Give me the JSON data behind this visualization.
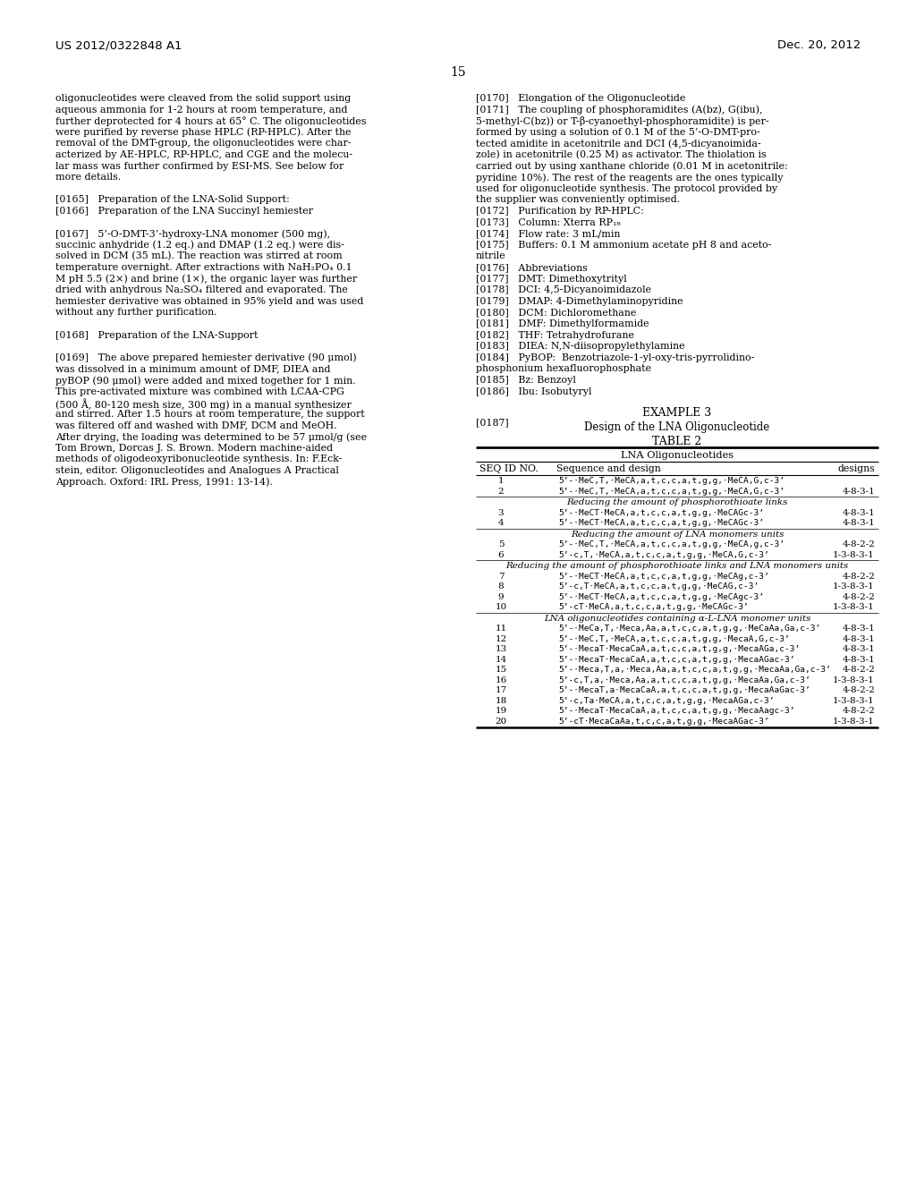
{
  "bg_color": "#ffffff",
  "header_left": "US 2012/0322848 A1",
  "header_right": "Dec. 20, 2012",
  "page_number": "15",
  "left_column": [
    "oligonucleotides were cleaved from the solid support using",
    "aqueous ammonia for 1-2 hours at room temperature, and",
    "further deprotected for 4 hours at 65° C. The oligonucleotides",
    "were purified by reverse phase HPLC (RP-HPLC). After the",
    "removal of the DMT-group, the oligonucleotides were char-",
    "acterized by AE-HPLC, RP-HPLC, and CGE and the molecu-",
    "lar mass was further confirmed by ESI-MS. See below for",
    "more details.",
    "",
    "[0165]   Preparation of the LNA-Solid Support:",
    "[0166]   Preparation of the LNA Succinyl hemiester",
    "",
    "[0167]   5’-O-DMT-3’-hydroxy-LNA monomer (500 mg),",
    "succinic anhydride (1.2 eq.) and DMAP (1.2 eq.) were dis-",
    "solved in DCM (35 mL). The reaction was stirred at room",
    "temperature overnight. After extractions with NaH₂PO₄ 0.1",
    "M pH 5.5 (2×) and brine (1×), the organic layer was further",
    "dried with anhydrous Na₂SO₄ filtered and evaporated. The",
    "hemiester derivative was obtained in 95% yield and was used",
    "without any further purification.",
    "",
    "[0168]   Preparation of the LNA-Support",
    "",
    "[0169]   The above prepared hemiester derivative (90 μmol)",
    "was dissolved in a minimum amount of DMF, DIEA and",
    "pyBOP (90 μmol) were added and mixed together for 1 min.",
    "This pre-activated mixture was combined with LCAA-CPG",
    "(500 Å, 80-120 mesh size, 300 mg) in a manual synthesizer",
    "and stirred. After 1.5 hours at room temperature, the support",
    "was filtered off and washed with DMF, DCM and MeOH.",
    "After drying, the loading was determined to be 57 μmol/g (see",
    "Tom Brown, Dorcas J. S. Brown. Modern machine-aided",
    "methods of oligodeoxyribonucleotide synthesis. In: F.Eck-",
    "stein, editor. Oligonucleotides and Analogues A Practical",
    "Approach. Oxford: IRL Press, 1991: 13-14)."
  ],
  "right_column": [
    "[0170]   Elongation of the Oligonucleotide",
    "[0171]   The coupling of phosphoramidites (A(bz), G(ibu),",
    "5-methyl-C(bz)) or T-β-cyanoethyl-phosphoramidite) is per-",
    "formed by using a solution of 0.1 M of the 5’-O-DMT-pro-",
    "tected amidite in acetonitrile and DCI (4,5-dicyanoimida-",
    "zole) in acetonitrile (0.25 M) as activator. The thiolation is",
    "carried out by using xanthane chloride (0.01 M in acetonitrile:",
    "pyridine 10%). The rest of the reagents are the ones typically",
    "used for oligonucleotide synthesis. The protocol provided by",
    "the supplier was conveniently optimised.",
    "[0172]   Purification by RP-HPLC:",
    "[0173]   Column: Xterra RP₁₈",
    "[0174]   Flow rate: 3 mL/min",
    "[0175]   Buffers: 0.1 M ammonium acetate pH 8 and aceto-",
    "nitrile",
    "[0176]   Abbreviations",
    "[0177]   DMT: Dimethoxytrityl",
    "[0178]   DCI: 4,5-Dicyanoimidazole",
    "[0179]   DMAP: 4-Dimethylaminopyridine",
    "[0180]   DCM: Dichloromethane",
    "[0181]   DMF: Dimethylformamide",
    "[0182]   THF: Tetrahydrofurane",
    "[0183]   DIEA: N,N-diisopropylethylamine",
    "[0184]   PyBOP:  Benzotriazole-1-yl-oxy-tris-pyrrolidino-",
    "phosphonium hexafluorophosphate",
    "[0185]   Bz: Benzoyl",
    "[0186]   Ibu: Isobutyryl"
  ],
  "example3_title": "EXAMPLE 3",
  "example3_subtitle": "Design of the LNA Oligonucleotide",
  "para0187": "[0187]",
  "table_title": "TABLE 2",
  "table_subtitle": "LNA Oligonucleotides",
  "table_col1": "SEQ ID NO.",
  "table_col2": "Sequence and design",
  "table_col3": "designs",
  "table_rows": [
    {
      "seq": "1",
      "seq_design": "5’-·MeC,T,·MeCA,a,t,c,c,a,t,g,g,·MeCA,G,c-3’",
      "design": ""
    },
    {
      "seq": "2",
      "seq_design": "5’-·MeC,T,·MeCA,a,t,c,c,a,t,g,g,·MeCA,G,c-3’",
      "design": "4-8-3-1"
    },
    {
      "seq": "section1",
      "seq_design": "Reducing the amount of phosphorothioate links",
      "design": ""
    },
    {
      "seq": "3",
      "seq_design": "5’-·MeCT·MeCA,a,t,c,c,a,t,g,g,·MeCAGc-3’",
      "design": "4-8-3-1"
    },
    {
      "seq": "4",
      "seq_design": "5’-·MeCT·MeCA,a,t,c,c,a,t,g,g,·MeCAGc-3’",
      "design": "4-8-3-1"
    },
    {
      "seq": "section2",
      "seq_design": "Reducing the amount of LNA monomers units",
      "design": ""
    },
    {
      "seq": "5",
      "seq_design": "5’-·MeC,T,·MeCA,a,t,c,c,a,t,g,g,·MeCA,g,c-3’",
      "design": "4-8-2-2"
    },
    {
      "seq": "6",
      "seq_design": "5’-c,T,·MeCA,a,t,c,c,a,t,g,g,·MeCA,G,c-3’",
      "design": "1-3-8-3-1"
    },
    {
      "seq": "section3",
      "seq_design": "Reducing the amount of phosphorothioate links and LNA monomers units",
      "design": ""
    },
    {
      "seq": "7",
      "seq_design": "5’-·MeCT·MeCA,a,t,c,c,a,t,g,g,·MeCAg,c-3’",
      "design": "4-8-2-2"
    },
    {
      "seq": "8",
      "seq_design": "5’-c,T·MeCA,a,t,c,c,a,t,g,g,·MeCAG,c-3’",
      "design": "1-3-8-3-1"
    },
    {
      "seq": "9",
      "seq_design": "5’-·MeCT·MeCA,a,t,c,c,a,t,g,g,·MeCAgc-3’",
      "design": "4-8-2-2"
    },
    {
      "seq": "10",
      "seq_design": "5’-cT·MeCA,a,t,c,c,a,t,g,g,·MeCAGc-3’",
      "design": "1-3-8-3-1"
    },
    {
      "seq": "section4",
      "seq_design": "LNA oligonucleotides containing α-L-LNA monomer units",
      "design": ""
    },
    {
      "seq": "11",
      "seq_design": "5’-·MeCa,T,·Meca,Aa,a,t,c,c,a,t,g,g,·MeCaAa,Ga,c-3’",
      "design": "4-8-3-1"
    },
    {
      "seq": "12",
      "seq_design": "5’-·MeC,T,·MeCA,a,t,c,c,a,t,g,g,·MecaA,G,c-3’",
      "design": "4-8-3-1"
    },
    {
      "seq": "13",
      "seq_design": "5’-·MecaT·MecaCaA,a,t,c,c,a,t,g,g,·MecaAGa,c-3’",
      "design": "4-8-3-1"
    },
    {
      "seq": "14",
      "seq_design": "5’-·MecaT·MecaCaA,a,t,c,c,a,t,g,g,·MecaAGac-3’",
      "design": "4-8-3-1"
    },
    {
      "seq": "15",
      "seq_design": "5’-·Meca,T,a,·Meca,Aa,a,t,c,c,a,t,g,g,·MecaAa,Ga,c-3’",
      "design": "4-8-2-2"
    },
    {
      "seq": "16",
      "seq_design": "5’-c,T,a,·Meca,Aa,a,t,c,c,a,t,g,g,·MecaAa,Ga,c-3’",
      "design": "1-3-8-3-1"
    },
    {
      "seq": "17",
      "seq_design": "5’-·MecaT,a·MecaCaA,a,t,c,c,a,t,g,g,·MecaAaGac-3’",
      "design": "4-8-2-2"
    },
    {
      "seq": "18",
      "seq_design": "5’-c,Ta·MeCA,a,t,c,c,a,t,g,g,·MecaAGa,c-3’",
      "design": "1-3-8-3-1"
    },
    {
      "seq": "19",
      "seq_design": "5’-·MecaT·MecaCaA,a,t,c,c,a,t,g,g,·MecaAagc-3’",
      "design": "4-8-2-2"
    },
    {
      "seq": "20",
      "seq_design": "5’-cT·MecaCaAa,t,c,c,a,t,g,g,·MecaAGac-3’",
      "design": "1-3-8-3-1"
    }
  ]
}
